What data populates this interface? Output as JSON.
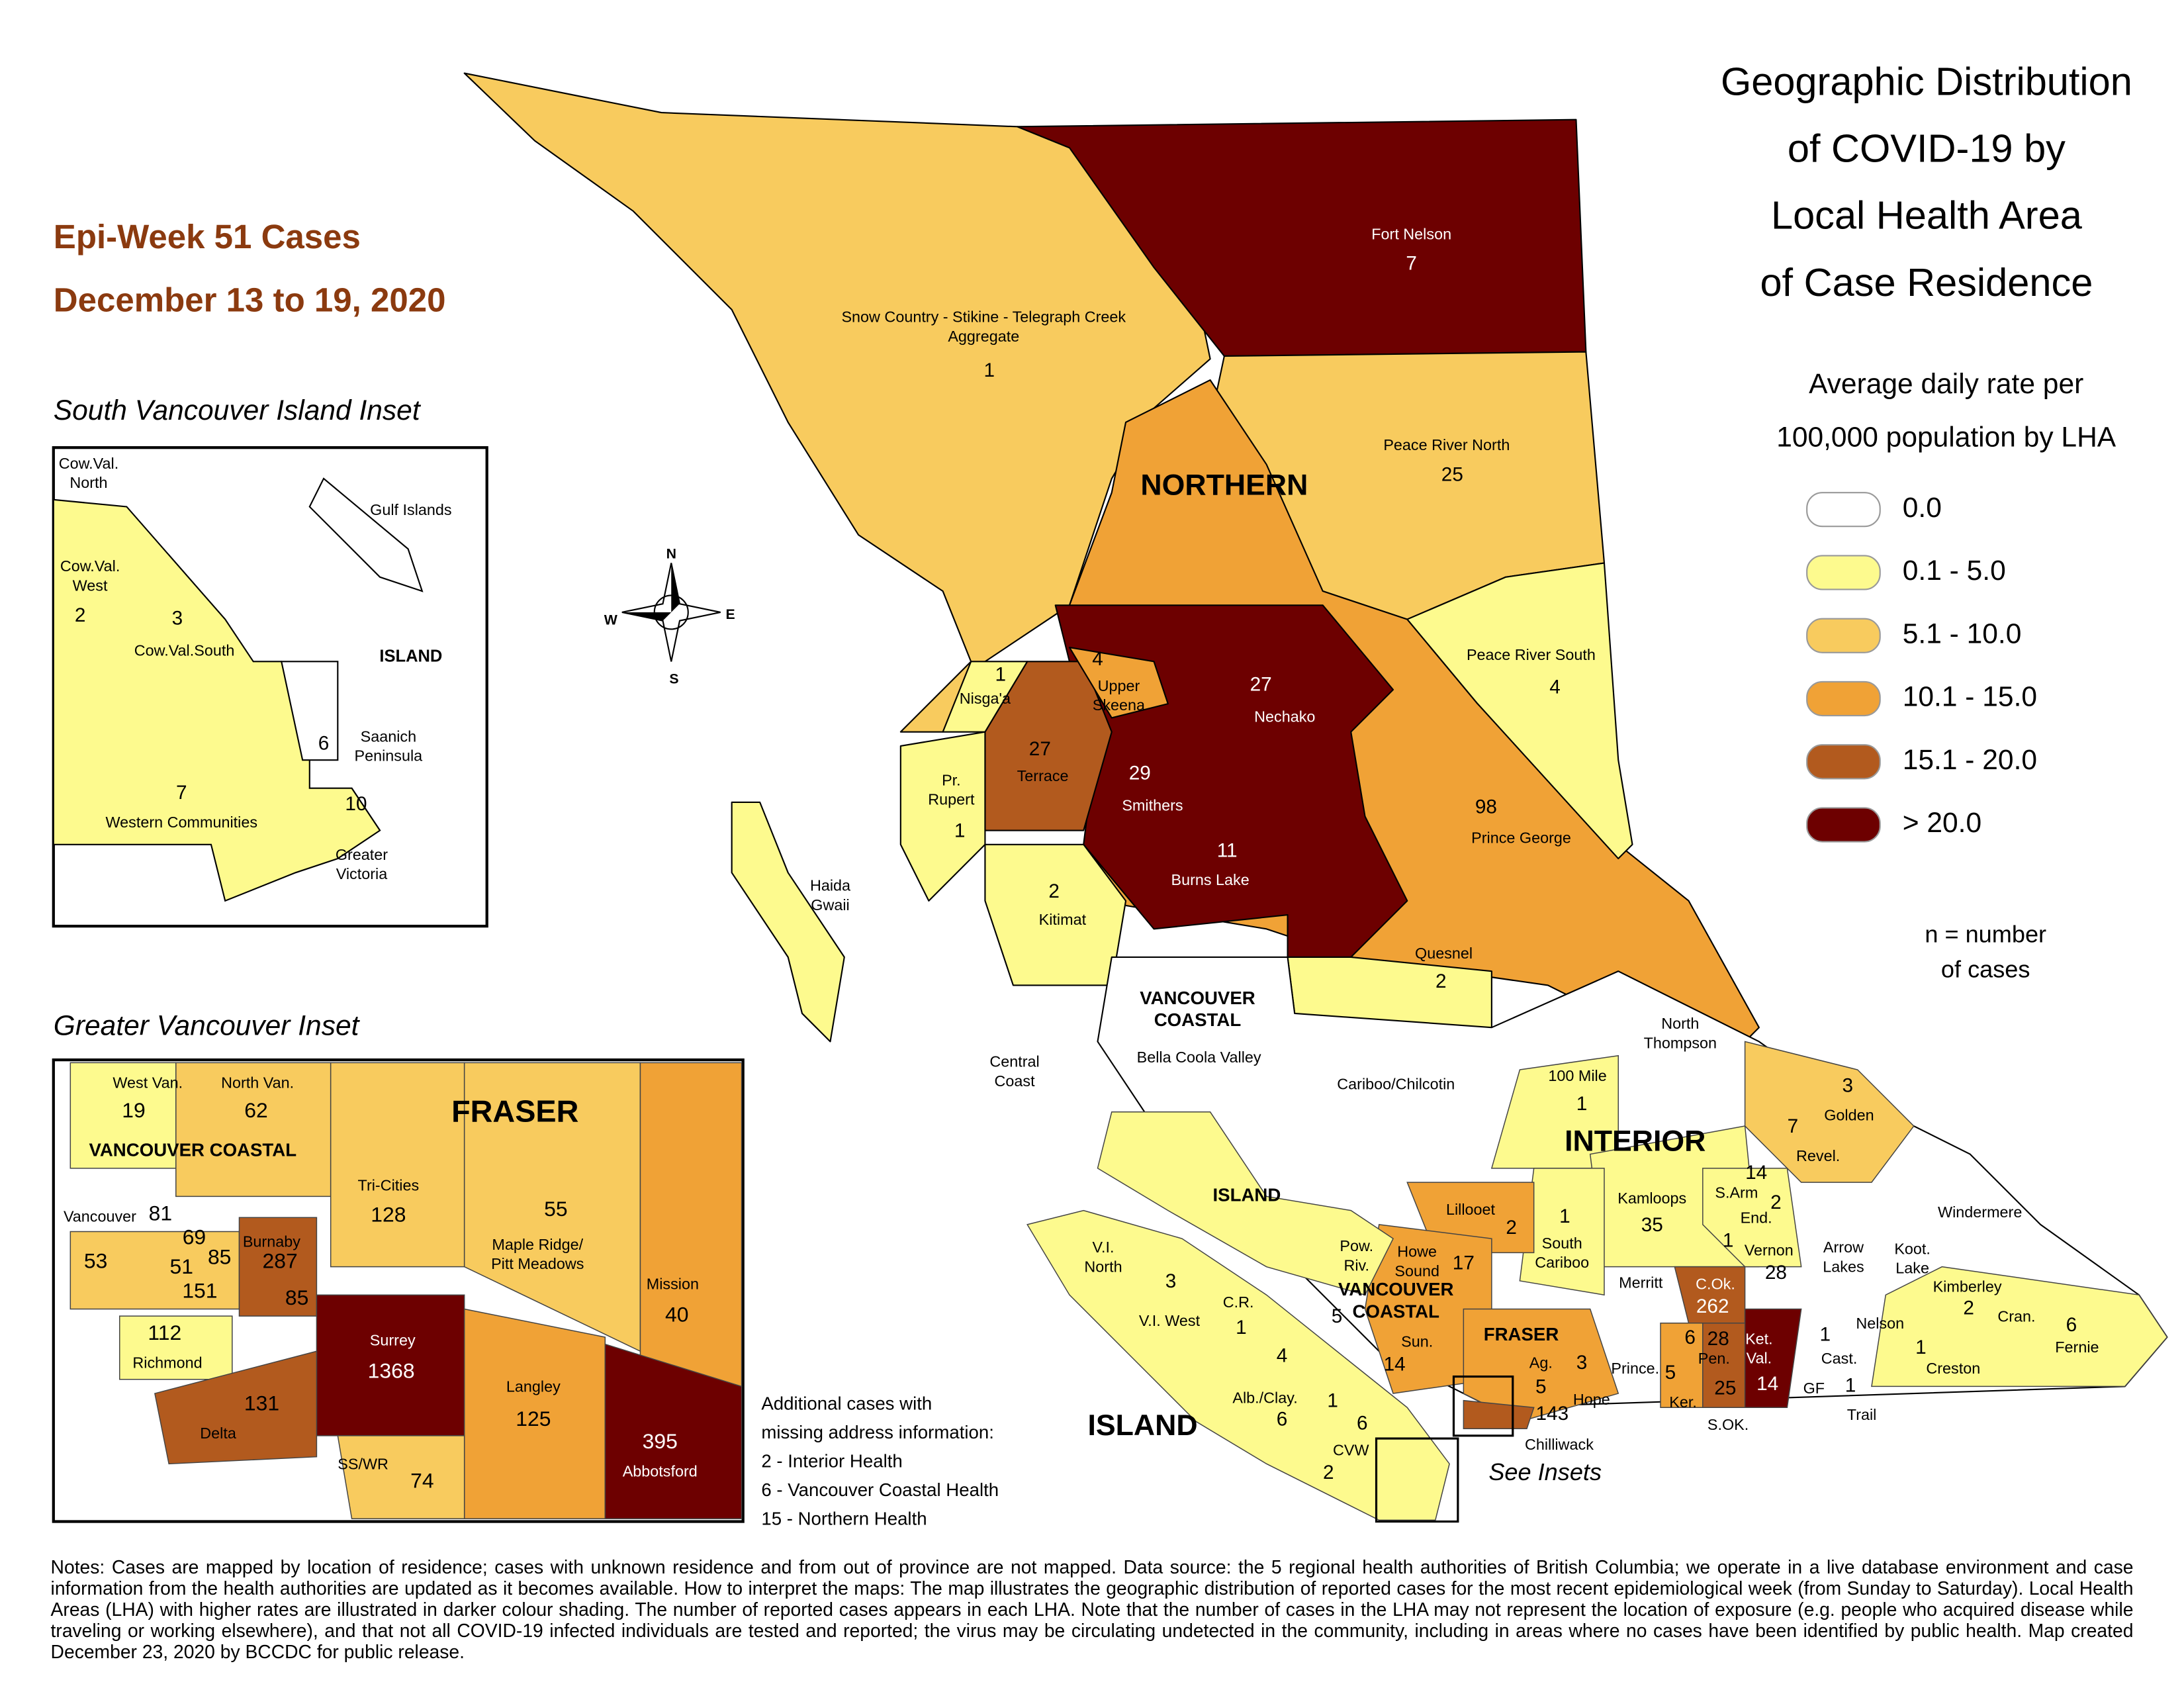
{
  "title": [
    "Geographic Distribution",
    "of COVID-19 by",
    "Local Health Area",
    "of Case Residence"
  ],
  "subtitle": [
    "Epi-Week 51 Cases",
    "December 13 to 19, 2020"
  ],
  "legend": {
    "title": [
      "Average daily rate per",
      "100,000 population by LHA"
    ],
    "items": [
      "0.0",
      "0.1 - 5.0",
      "5.1 - 10.0",
      "10.1 - 15.0",
      "15.1 - 20.0",
      "> 20.0"
    ],
    "note": [
      "n = number",
      "of cases"
    ]
  },
  "compass": [
    "N",
    "E",
    "S",
    "W"
  ],
  "regions": [
    "NORTHERN",
    [
      "VANCOUVER",
      "COASTAL"
    ],
    "INTERIOR",
    "ISLAND",
    [
      "VANCOUVER",
      "COASTAL"
    ],
    "FRASER",
    "ISLAND"
  ],
  "lha": [
    {
      "name": "Fort Nelson",
      "cases": 7
    },
    {
      "name": [
        "Snow Country - Stikine - Telegraph Creek",
        "Aggregate"
      ],
      "cases": 1
    },
    {
      "name": "Peace River North",
      "cases": 25
    },
    {
      "name": "Peace River South",
      "cases": 4
    },
    {
      "name": "Nechako",
      "cases": 27
    },
    {
      "name": [
        "Upper",
        "Skeena"
      ],
      "cases": 4
    },
    {
      "name": "Nisga'a",
      "cases": 1
    },
    {
      "name": "Terrace",
      "cases": 27
    },
    {
      "name": "Smithers",
      "cases": 29
    },
    {
      "name": "Burns Lake",
      "cases": 11
    },
    {
      "name": "Prince George",
      "cases": 98
    },
    {
      "name": [
        "Pr.",
        "Rupert"
      ],
      "cases": 1
    },
    {
      "name": [
        "Haida",
        "Gwaii"
      ]
    },
    {
      "name": "Kitimat",
      "cases": 2
    },
    {
      "name": "Quesnel",
      "cases": 2
    },
    {
      "name": "Bella Coola Valley"
    },
    {
      "name": [
        "Central",
        "Coast"
      ]
    },
    {
      "name": "Cariboo/Chilcotin"
    },
    {
      "name": [
        "North",
        "Thompson"
      ]
    },
    {
      "name": "100 Mile",
      "cases": 1
    },
    {
      "name": "Golden",
      "cases": 3
    },
    {
      "name": "Revel.",
      "cases": 7
    },
    {
      "name": "Lillooet",
      "cases": 2
    },
    {
      "name": "S.Arm",
      "cases": 14
    },
    {
      "name": "End.",
      "cases": 2
    },
    {
      "cases": 1
    },
    {
      "name": "Kamloops",
      "cases": 35
    },
    {
      "name": [
        "South",
        "Cariboo"
      ],
      "cases": 1
    },
    {
      "name": "Windermere"
    },
    {
      "name": [
        "Pow.",
        "Riv."
      ],
      "cases": 5
    },
    {
      "name": [
        "Howe",
        "Sound"
      ],
      "cases": 17
    },
    {
      "name": [
        "V.I.",
        "North"
      ],
      "cases": 3
    },
    {
      "name": "Vernon",
      "cases": 28
    },
    {
      "name": [
        "Arrow",
        "Lakes"
      ]
    },
    {
      "name": [
        "Koot.",
        "Lake"
      ]
    },
    {
      "name": "Merritt"
    },
    {
      "name": "C.Ok.",
      "cases": 262
    },
    {
      "name": "Kimberley",
      "cases": 2
    },
    {
      "name": "C.R.",
      "cases": 1
    },
    {
      "name": "V.I. West"
    },
    {
      "name": "Nelson"
    },
    {
      "name": "Cran."
    },
    {
      "name": "Fernie",
      "cases": 6
    },
    {
      "name": "Sun.",
      "cases": 14
    },
    {
      "cases": 6
    },
    {
      "name": "Pen.",
      "cases": 28
    },
    {
      "name": [
        "Ket.",
        "Val."
      ],
      "cases": 14
    },
    {
      "name": "Ag.",
      "cases": 5
    },
    {
      "name": "Hope",
      "cases": 3
    },
    {
      "name": "Cast.",
      "cases": 1
    },
    {
      "cases": 4
    },
    {
      "name": "Prince."
    },
    {
      "name": "Creston",
      "cases": 1
    },
    {
      "name": "Alb./Clay.",
      "cases": 6
    },
    {
      "cases": 1
    },
    {
      "name": "Trail",
      "cases": 1
    },
    {
      "name": "Ker.",
      "cases": 5
    },
    {
      "name": "S.OK.",
      "cases": 25
    },
    {
      "name": "GF"
    },
    {
      "cases": 6
    },
    {
      "name": "Chilliwack",
      "cases": 143
    },
    {
      "name": "CVW"
    },
    {
      "cases": 2
    }
  ],
  "see_insets": "See Insets",
  "south_island_inset": {
    "title": "South Vancouver Island Inset",
    "region": "ISLAND",
    "lha": [
      {
        "name": [
          "Cow.Val.",
          "North"
        ]
      },
      {
        "name": "Gulf Islands"
      },
      {
        "name": [
          "Cow.Val.",
          "West"
        ],
        "cases": 2
      },
      {
        "name": "Cow.Val.South",
        "cases": 3
      },
      {
        "name": [
          "Saanich",
          "Peninsula"
        ],
        "cases": 6
      },
      {
        "name": "Western Communities",
        "cases": 7
      },
      {
        "name": [
          "Greater",
          "Victoria"
        ],
        "cases": 10
      }
    ]
  },
  "vancouver_inset": {
    "title": "Greater Vancouver Inset",
    "regions": [
      "FRASER",
      "VANCOUVER COASTAL"
    ],
    "lha": [
      {
        "name": "West Van.",
        "cases": 19
      },
      {
        "name": "North Van.",
        "cases": 62
      },
      {
        "name": "Tri-Cities",
        "cases": 128
      },
      {
        "name": [
          "Maple Ridge/",
          "Pitt Meadows"
        ],
        "cases": 55
      },
      {
        "name": "Vancouver"
      },
      {
        "cases": 81
      },
      {
        "cases": 69
      },
      {
        "cases": 85
      },
      {
        "cases": 53
      },
      {
        "cases": 51
      },
      {
        "cases": 151
      },
      {
        "name": "Burnaby",
        "cases": 287
      },
      {
        "cases": 85
      },
      {
        "name": "Mission",
        "cases": 40
      },
      {
        "name": "Richmond",
        "cases": 112
      },
      {
        "name": "Surrey",
        "cases": 1368
      },
      {
        "name": "Langley",
        "cases": 125
      },
      {
        "name": "Delta",
        "cases": 131
      },
      {
        "name": "Abbotsford",
        "cases": 395
      },
      {
        "name": "SS/WR",
        "cases": 74
      }
    ]
  },
  "additional_cases": {
    "title": [
      "Additional cases with",
      "missing address information:"
    ],
    "items": [
      "2 - Interior Health",
      "6 - Vancouver Coastal Health",
      "15 - Northern Health"
    ]
  },
  "notes": "Notes: Cases are mapped by location of residence; cases with unknown residence and from out of province are not mapped. Data source: the 5 regional health authorities of British Columbia; we operate in a live database environment and case information from the health authorities are updated as it becomes available. How to interpret the maps: The map illustrates the geographic distribution of reported cases for the most recent epidemiological week (from Sunday to Saturday). Local Health Areas (LHA) with higher rates are illustrated in darker colour shading. The number of reported cases appears in each LHA. Note that the number of cases in the LHA may not represent the location of exposure (e.g. people who acquired disease while traveling or working elsewhere), and that not all COVID-19 infected individuals are tested and reported; the virus may be circulating undetected in the community, including in areas where no cases have been identified by public health. Map created December 23, 2020 by BCCDC for public release."
}
